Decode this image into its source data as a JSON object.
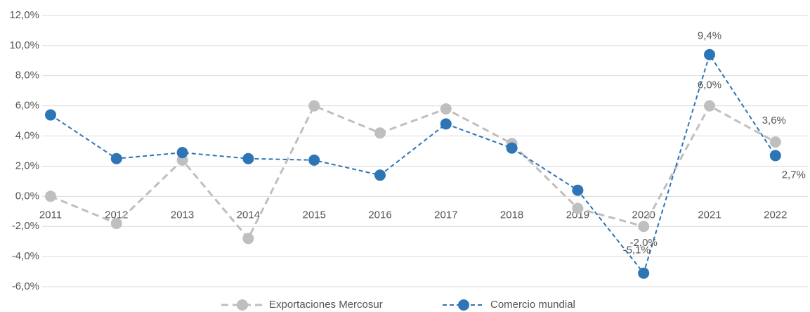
{
  "chart_data": {
    "type": "line",
    "categories": [
      "2011",
      "2012",
      "2013",
      "2014",
      "2015",
      "2016",
      "2017",
      "2018",
      "2019",
      "2020",
      "2021",
      "2022"
    ],
    "series": [
      {
        "name": "Exportaciones Mercosur",
        "color": "#bfbfbf",
        "marker_color": "#bfbfbf",
        "values": [
          0.0,
          -1.8,
          2.4,
          -2.8,
          6.0,
          4.2,
          5.8,
          3.5,
          -0.8,
          -2.0,
          6.0,
          3.6
        ],
        "value_labels": [
          null,
          null,
          null,
          null,
          null,
          null,
          null,
          null,
          null,
          "-2,0%",
          "6,0%",
          "3,6%"
        ]
      },
      {
        "name": "Comercio mundial",
        "color": "#2e75b6",
        "marker_color": "#2e75b6",
        "values": [
          5.4,
          2.5,
          2.9,
          2.5,
          2.4,
          1.4,
          4.8,
          3.2,
          0.4,
          -5.1,
          9.4,
          2.7
        ],
        "value_labels": [
          null,
          null,
          null,
          null,
          null,
          null,
          null,
          null,
          null,
          "-5,1%",
          "9,4%",
          "2,7%"
        ]
      }
    ],
    "ylim": [
      -6,
      12
    ],
    "yticks": [
      {
        "value": -6,
        "label": "-6,0%"
      },
      {
        "value": -4,
        "label": "-4,0%"
      },
      {
        "value": -2,
        "label": "-2,0%"
      },
      {
        "value": 0,
        "label": "0,0%"
      },
      {
        "value": 2,
        "label": "2,0%"
      },
      {
        "value": 4,
        "label": "4,0%"
      },
      {
        "value": 6,
        "label": "6,0%"
      },
      {
        "value": 8,
        "label": "8,0%"
      },
      {
        "value": 10,
        "label": "10,0%"
      },
      {
        "value": 12,
        "label": "12,0%"
      }
    ],
    "grid": true,
    "legend": "bottom"
  }
}
